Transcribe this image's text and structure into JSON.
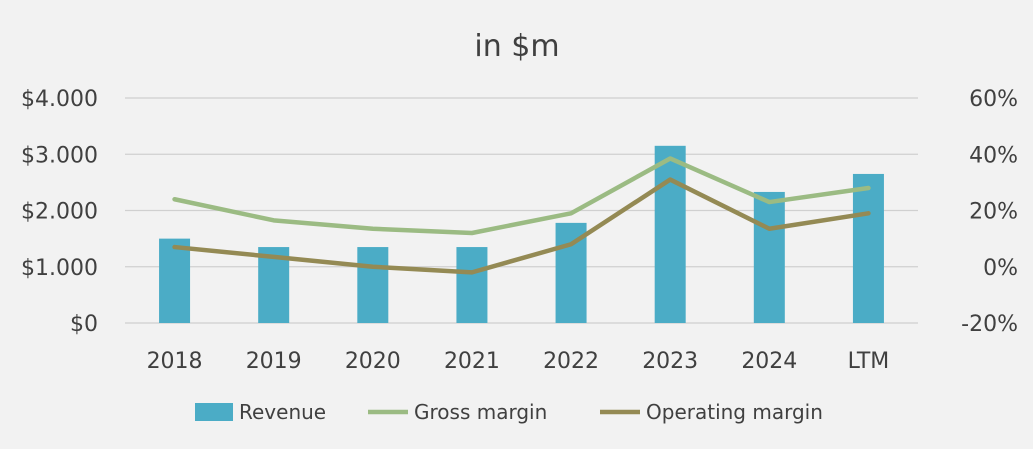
{
  "chart_data": {
    "type": "bar",
    "title": "in $m",
    "categories": [
      "2018",
      "2019",
      "2020",
      "2021",
      "2022",
      "2023",
      "2024",
      "LTM"
    ],
    "y_left": {
      "ticks": [
        "$0",
        "$1.000",
        "$2.000",
        "$3.000",
        "$4.000"
      ],
      "range": [
        0,
        4000
      ]
    },
    "y_right": {
      "ticks": [
        "-20%",
        "0%",
        "20%",
        "40%",
        "60%"
      ],
      "range": [
        -20,
        60
      ]
    },
    "series": [
      {
        "name": "Revenue",
        "kind": "bar",
        "axis": "left",
        "color": "#4bacc6",
        "values": [
          1500,
          1350,
          1350,
          1350,
          1780,
          3150,
          2330,
          2650
        ]
      },
      {
        "name": "Gross margin",
        "kind": "line",
        "axis": "right",
        "color": "#9bbb83",
        "values": [
          24,
          16.5,
          13.5,
          12,
          19,
          38.5,
          23,
          28
        ]
      },
      {
        "name": "Operating margin",
        "kind": "line",
        "axis": "right",
        "color": "#948a54",
        "values": [
          7,
          3.5,
          0,
          -2,
          8,
          31,
          13.5,
          19
        ]
      }
    ],
    "grid": true,
    "legend_position": "bottom"
  }
}
